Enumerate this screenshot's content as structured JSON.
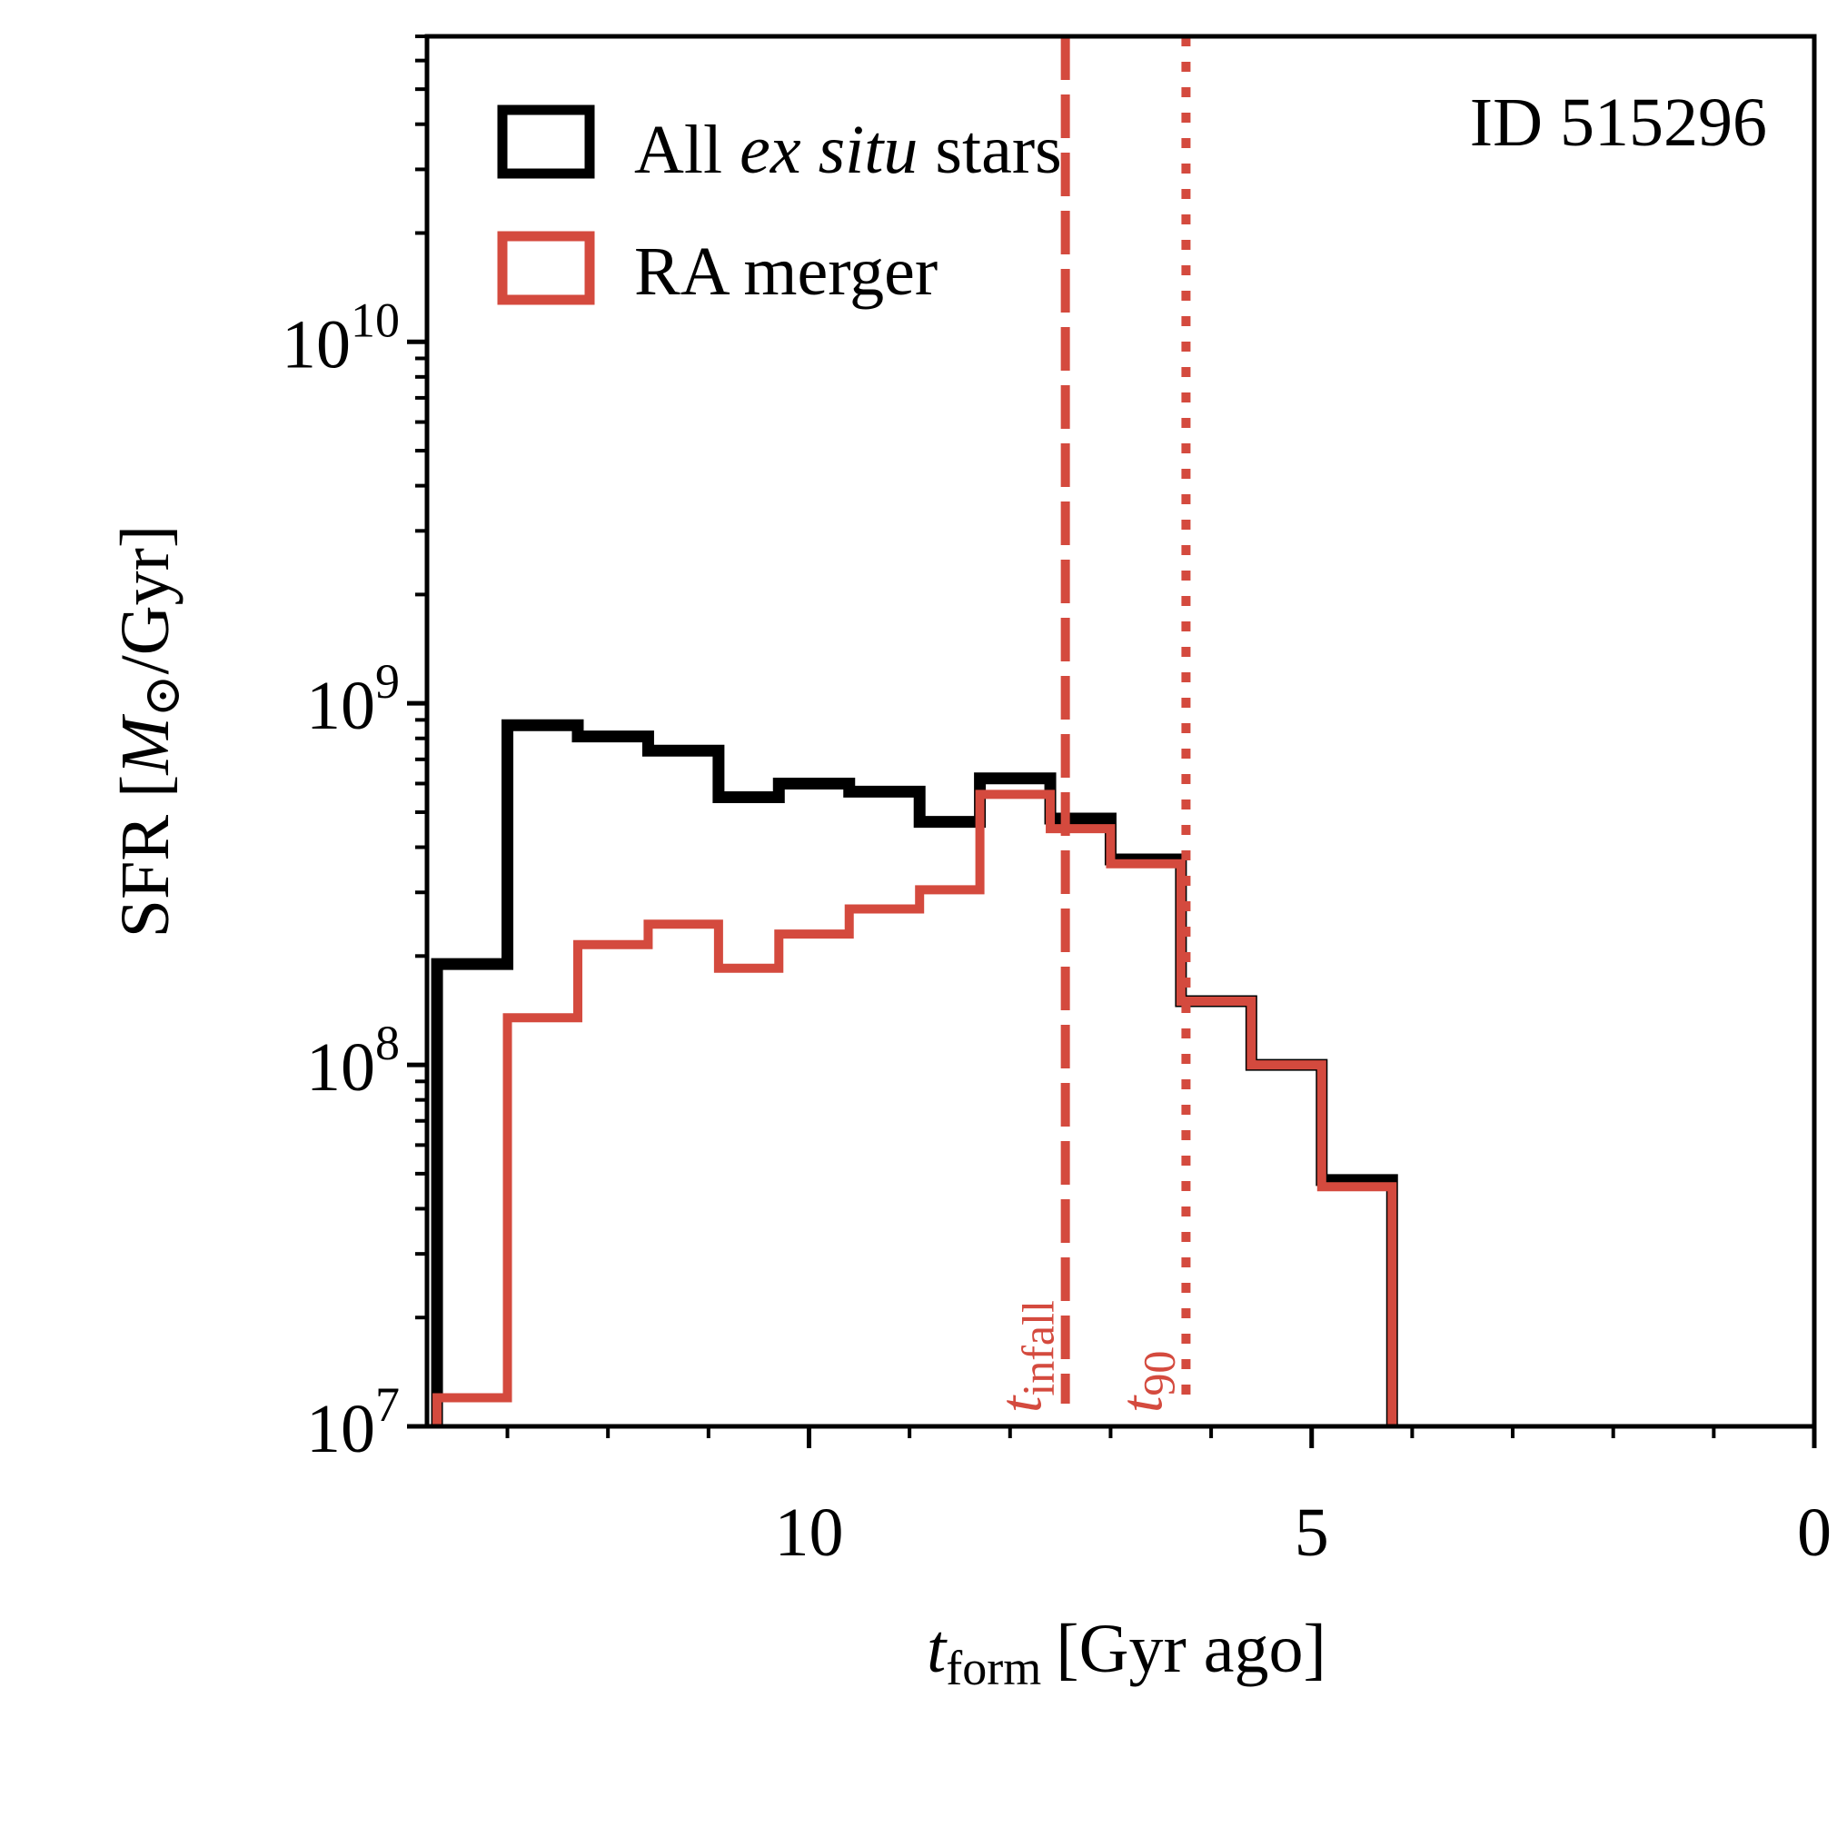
{
  "chart_data": {
    "type": "step-histogram",
    "annotation": "ID 515296",
    "xlabel": {
      "main": "t",
      "sub": "form",
      "rest": "[Gyr ago]"
    },
    "ylabel": {
      "prefix": "SFR [",
      "symbol": "M",
      "sun": "⊙",
      "suffix": "/Gyr]"
    },
    "xlim": [
      13.8,
      0
    ],
    "ylim": [
      10000000,
      70000000000
    ],
    "x_ticks": [
      {
        "value": 10,
        "label": "10"
      },
      {
        "value": 5,
        "label": "5"
      },
      {
        "value": 0,
        "label": "0"
      }
    ],
    "y_ticks": [
      {
        "value": 10000000,
        "base": "10",
        "exp": "7"
      },
      {
        "value": 100000000,
        "base": "10",
        "exp": "8"
      },
      {
        "value": 1000000000,
        "base": "10",
        "exp": "9"
      },
      {
        "value": 10000000000,
        "base": "10",
        "exp": "10"
      }
    ],
    "legend": {
      "position": "top-left",
      "entries": [
        {
          "prefix": "All ",
          "italic": "ex situ",
          "suffix": " stars",
          "color": "#000000"
        },
        {
          "prefix": "RA merger",
          "italic": "",
          "suffix": "",
          "color": "#d44a3e"
        }
      ]
    },
    "series": [
      {
        "name": "All ex situ stars",
        "color": "#000000",
        "edges": [
          13.7,
          13.0,
          12.3,
          11.6,
          10.9,
          10.3,
          9.6,
          8.9,
          8.3,
          7.6,
          7.0,
          6.3,
          5.6,
          4.9,
          4.2
        ],
        "values": [
          190000000,
          870000000,
          810000000,
          740000000,
          550000000,
          600000000,
          570000000,
          470000000,
          620000000,
          480000000,
          370000000,
          150000000,
          100000000,
          48000000
        ]
      },
      {
        "name": "RA merger",
        "color": "#d44a3e",
        "edges": [
          13.7,
          13.0,
          12.3,
          11.6,
          10.9,
          10.3,
          9.6,
          8.9,
          8.3,
          7.6,
          7.0,
          6.3,
          5.6,
          4.9,
          4.2
        ],
        "values": [
          12000000,
          135000000,
          215000000,
          245000000,
          185000000,
          230000000,
          270000000,
          305000000,
          560000000,
          450000000,
          360000000,
          150000000,
          100000000,
          46000000
        ]
      }
    ],
    "vlines": [
      {
        "value": 7.45,
        "style": "dashed",
        "label_main": "t",
        "label_sub": "infall",
        "color": "#d44a3e"
      },
      {
        "value": 6.25,
        "style": "dotted",
        "label_main": "t",
        "label_sub": "90",
        "color": "#d44a3e"
      }
    ]
  }
}
